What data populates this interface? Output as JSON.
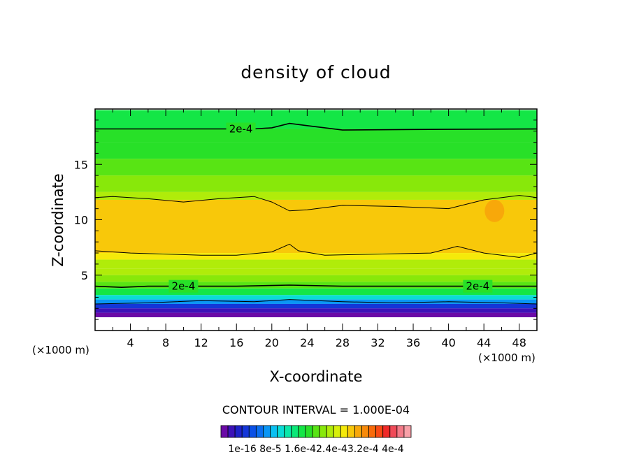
{
  "chart_data": {
    "type": "heatmap",
    "title": "density of cloud",
    "xlabel": "X-coordinate",
    "ylabel": "Z-coordinate",
    "x_unit": "(×1000 m)",
    "x_unit_left": "(×1000 m)",
    "xlim": [
      0,
      50
    ],
    "ylim": [
      0,
      20
    ],
    "x_ticks": [
      4,
      8,
      12,
      16,
      20,
      24,
      28,
      32,
      36,
      40,
      44,
      48
    ],
    "y_ticks": [
      5,
      10,
      15
    ],
    "colorscale": {
      "min": 1e-16,
      "max": 0.00044,
      "labels": [
        "1e-16",
        "8e-5",
        "1.6e-4",
        "2.4e-4",
        "3.2e-4",
        "4e-4"
      ],
      "label_text": "1e-16 8e-5 1.6e-42.4e-43.2e-4 4e-4",
      "colors": [
        "#6a0aa6",
        "#3c12b8",
        "#1e22c8",
        "#1436d8",
        "#0a50e6",
        "#0a6ef0",
        "#0a96f5",
        "#0ac0f2",
        "#0adcd6",
        "#0ae8aa",
        "#0ae878",
        "#14e646",
        "#28e028",
        "#58e414",
        "#88e80a",
        "#b0ec0a",
        "#d8f00a",
        "#f5ea0a",
        "#f8c80a",
        "#f8a80a",
        "#f88a0a",
        "#f86a0a",
        "#f84a14",
        "#f02a28",
        "#f04a58",
        "#f47a88",
        "#f8a0a8"
      ]
    },
    "contour_interval": "CONTOUR INTERVAL = 1.000E-04",
    "contour_labels": [
      {
        "text": "2e-4",
        "x": 16.5,
        "z": 18.2
      },
      {
        "text": "2e-4",
        "x": 10.0,
        "z": 4.0
      },
      {
        "text": "2e-4",
        "x": 43.3,
        "z": 4.0
      }
    ],
    "bands": [
      {
        "z_bottom": 18.2,
        "z_top": 19.9,
        "value": 0.00018
      },
      {
        "z_bottom": 17.0,
        "z_top": 18.2,
        "value": 0.0002
      },
      {
        "z_bottom": 15.5,
        "z_top": 17.0,
        "value": 0.00021
      },
      {
        "z_bottom": 14.0,
        "z_top": 15.5,
        "value": 0.000225
      },
      {
        "z_bottom": 12.5,
        "z_top": 14.0,
        "value": 0.00024
      },
      {
        "z_bottom": 11.8,
        "z_top": 12.5,
        "value": 0.00026
      },
      {
        "z_bottom": 7.0,
        "z_top": 11.8,
        "value": 0.0003
      },
      {
        "z_bottom": 6.4,
        "z_top": 7.0,
        "value": 0.00028
      },
      {
        "z_bottom": 5.6,
        "z_top": 6.4,
        "value": 0.00026
      },
      {
        "z_bottom": 5.0,
        "z_top": 5.6,
        "value": 0.000245
      },
      {
        "z_bottom": 4.4,
        "z_top": 5.0,
        "value": 0.00023
      },
      {
        "z_bottom": 3.8,
        "z_top": 4.4,
        "value": 0.000215
      },
      {
        "z_bottom": 3.2,
        "z_top": 3.8,
        "value": 0.00019
      },
      {
        "z_bottom": 2.8,
        "z_top": 3.2,
        "value": 0.00014
      },
      {
        "z_bottom": 2.4,
        "z_top": 2.8,
        "value": 0.0001
      },
      {
        "z_bottom": 2.0,
        "z_top": 2.4,
        "value": 6e-05
      },
      {
        "z_bottom": 1.6,
        "z_top": 2.0,
        "value": 3e-05
      },
      {
        "z_bottom": 1.2,
        "z_top": 1.6,
        "value": 1e-05
      }
    ],
    "contour_lines": [
      {
        "value": 0.0002,
        "points": [
          [
            0,
            18.2
          ],
          [
            18,
            18.2
          ],
          [
            20,
            18.3
          ],
          [
            22,
            18.7
          ],
          [
            24,
            18.5
          ],
          [
            28,
            18.1
          ],
          [
            36,
            18.15
          ],
          [
            50,
            18.2
          ]
        ]
      },
      {
        "value": 0.00029,
        "points": [
          [
            0,
            12.0
          ],
          [
            2,
            12.1
          ],
          [
            6,
            11.9
          ],
          [
            10,
            11.6
          ],
          [
            14,
            11.9
          ],
          [
            18,
            12.1
          ],
          [
            20,
            11.6
          ],
          [
            22,
            10.8
          ],
          [
            24,
            10.9
          ],
          [
            28,
            11.3
          ],
          [
            34,
            11.2
          ],
          [
            40,
            11.0
          ],
          [
            44,
            11.8
          ],
          [
            48,
            12.2
          ],
          [
            50,
            12.0
          ]
        ]
      },
      {
        "value": 0.00029,
        "points": [
          [
            0,
            7.2
          ],
          [
            4,
            7.0
          ],
          [
            8,
            6.9
          ],
          [
            12,
            6.8
          ],
          [
            16,
            6.8
          ],
          [
            20,
            7.1
          ],
          [
            22,
            7.8
          ],
          [
            23,
            7.2
          ],
          [
            26,
            6.8
          ],
          [
            32,
            6.9
          ],
          [
            38,
            7.0
          ],
          [
            41,
            7.6
          ],
          [
            44,
            7.0
          ],
          [
            48,
            6.6
          ],
          [
            50,
            7.0
          ]
        ]
      },
      {
        "value": 0.0002,
        "points": [
          [
            0,
            4.0
          ],
          [
            3,
            3.9
          ],
          [
            6,
            4.0
          ],
          [
            10,
            4.0
          ],
          [
            16,
            4.0
          ],
          [
            22,
            4.1
          ],
          [
            28,
            4.0
          ],
          [
            34,
            4.0
          ],
          [
            40,
            4.0
          ],
          [
            46,
            4.0
          ],
          [
            50,
            4.0
          ]
        ]
      },
      {
        "value": 0.0001,
        "points": [
          [
            0,
            2.4
          ],
          [
            6,
            2.5
          ],
          [
            12,
            2.7
          ],
          [
            18,
            2.6
          ],
          [
            22,
            2.8
          ],
          [
            28,
            2.6
          ],
          [
            34,
            2.5
          ],
          [
            40,
            2.6
          ],
          [
            46,
            2.5
          ],
          [
            50,
            2.4
          ]
        ]
      }
    ],
    "highlights": [
      {
        "x": 45.2,
        "z": 10.8,
        "value": 0.00032
      }
    ],
    "grid": false
  }
}
